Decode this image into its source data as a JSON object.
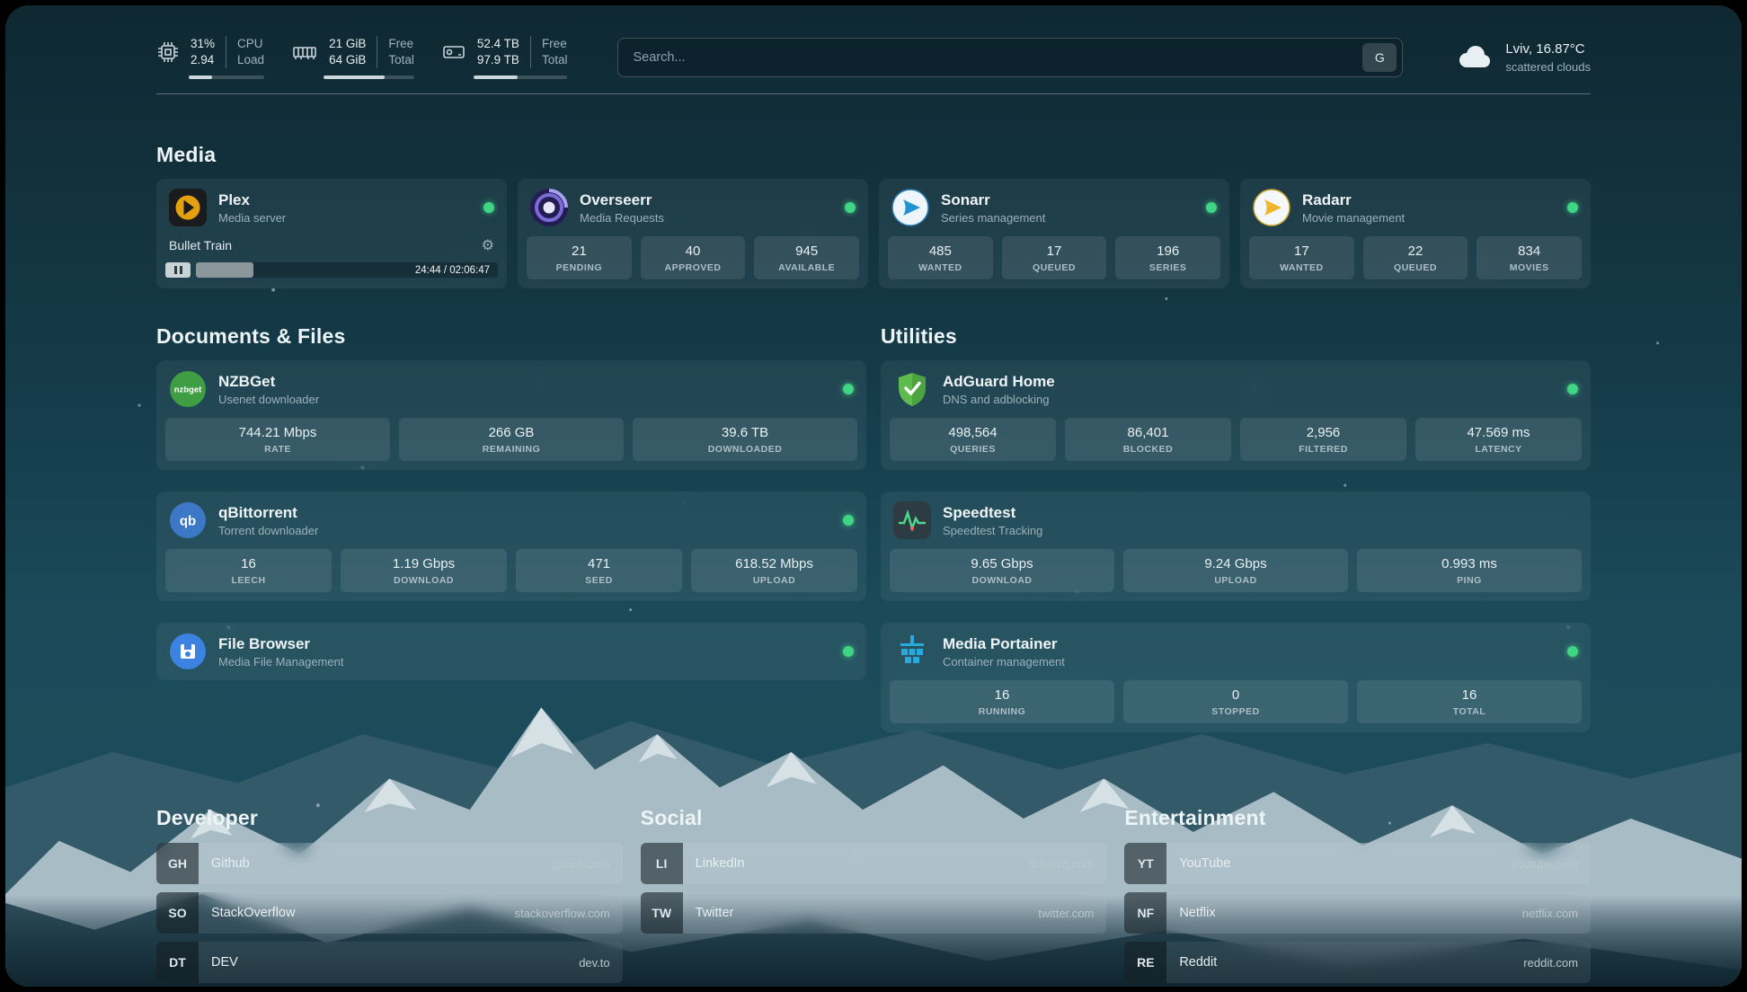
{
  "topbar": {
    "cpu": {
      "value1": "31%",
      "value2": "2.94",
      "label1": "CPU",
      "label2": "Load",
      "progress": 31
    },
    "ram": {
      "value1": "21 GiB",
      "value2": "64 GiB",
      "label1": "Free",
      "label2": "Total",
      "progress": 67
    },
    "disk": {
      "value1": "52.4 TB",
      "value2": "97.9 TB",
      "label1": "Free",
      "label2": "Total",
      "progress": 47
    },
    "search": {
      "placeholder": "Search...",
      "shortcut": "G"
    },
    "weather": {
      "line1": "Lviv, 16.87°C",
      "line2": "scattered clouds"
    }
  },
  "sections": {
    "media": "Media",
    "documents": "Documents & Files",
    "utilities": "Utilities",
    "developer": "Developer",
    "social": "Social",
    "entertainment": "Entertainment"
  },
  "apps": {
    "plex": {
      "title": "Plex",
      "subtitle": "Media server",
      "now_playing": "Bullet Train",
      "time": "24:44 / 02:06:47",
      "progress": 19
    },
    "overseerr": {
      "title": "Overseerr",
      "subtitle": "Media Requests",
      "stats": [
        {
          "value": "21",
          "label": "PENDING"
        },
        {
          "value": "40",
          "label": "APPROVED"
        },
        {
          "value": "945",
          "label": "AVAILABLE"
        }
      ]
    },
    "sonarr": {
      "title": "Sonarr",
      "subtitle": "Series management",
      "stats": [
        {
          "value": "485",
          "label": "WANTED"
        },
        {
          "value": "17",
          "label": "QUEUED"
        },
        {
          "value": "196",
          "label": "SERIES"
        }
      ]
    },
    "radarr": {
      "title": "Radarr",
      "subtitle": "Movie management",
      "stats": [
        {
          "value": "17",
          "label": "WANTED"
        },
        {
          "value": "22",
          "label": "QUEUED"
        },
        {
          "value": "834",
          "label": "MOVIES"
        }
      ]
    },
    "nzbget": {
      "title": "NZBGet",
      "subtitle": "Usenet downloader",
      "icon_text": "nzbget",
      "stats": [
        {
          "value": "744.21 Mbps",
          "label": "RATE"
        },
        {
          "value": "266 GB",
          "label": "REMAINING"
        },
        {
          "value": "39.6 TB",
          "label": "DOWNLOADED"
        }
      ]
    },
    "qbittorrent": {
      "title": "qBittorrent",
      "subtitle": "Torrent downloader",
      "icon_text": "qb",
      "stats": [
        {
          "value": "16",
          "label": "LEECH"
        },
        {
          "value": "1.19 Gbps",
          "label": "DOWNLOAD"
        },
        {
          "value": "471",
          "label": "SEED"
        },
        {
          "value": "618.52 Mbps",
          "label": "UPLOAD"
        }
      ]
    },
    "filebrowser": {
      "title": "File Browser",
      "subtitle": "Media File Management"
    },
    "adguard": {
      "title": "AdGuard Home",
      "subtitle": "DNS and adblocking",
      "stats": [
        {
          "value": "498,564",
          "label": "QUERIES"
        },
        {
          "value": "86,401",
          "label": "BLOCKED"
        },
        {
          "value": "2,956",
          "label": "FILTERED"
        },
        {
          "value": "47.569 ms",
          "label": "LATENCY"
        }
      ]
    },
    "speedtest": {
      "title": "Speedtest",
      "subtitle": "Speedtest Tracking",
      "stats": [
        {
          "value": "9.65 Gbps",
          "label": "DOWNLOAD"
        },
        {
          "value": "9.24 Gbps",
          "label": "UPLOAD"
        },
        {
          "value": "0.993 ms",
          "label": "PING"
        }
      ]
    },
    "portainer": {
      "title": "Media Portainer",
      "subtitle": "Container management",
      "stats": [
        {
          "value": "16",
          "label": "RUNNING"
        },
        {
          "value": "0",
          "label": "STOPPED"
        },
        {
          "value": "16",
          "label": "TOTAL"
        }
      ]
    }
  },
  "links": {
    "developer": [
      {
        "abbr": "GH",
        "name": "Github",
        "url": "github.com"
      },
      {
        "abbr": "SO",
        "name": "StackOverflow",
        "url": "stackoverflow.com"
      },
      {
        "abbr": "DT",
        "name": "DEV",
        "url": "dev.to"
      }
    ],
    "social": [
      {
        "abbr": "LI",
        "name": "LinkedIn",
        "url": "linkedin.com"
      },
      {
        "abbr": "TW",
        "name": "Twitter",
        "url": "twitter.com"
      }
    ],
    "entertainment": [
      {
        "abbr": "YT",
        "name": "YouTube",
        "url": "youtube.com"
      },
      {
        "abbr": "NF",
        "name": "Netflix",
        "url": "netflix.com"
      },
      {
        "abbr": "RE",
        "name": "Reddit",
        "url": "reddit.com"
      }
    ]
  },
  "colors": {
    "status_online": "#3fd584",
    "plex_amber": "#e5a00d",
    "adguard_green": "#5fbb4e"
  }
}
